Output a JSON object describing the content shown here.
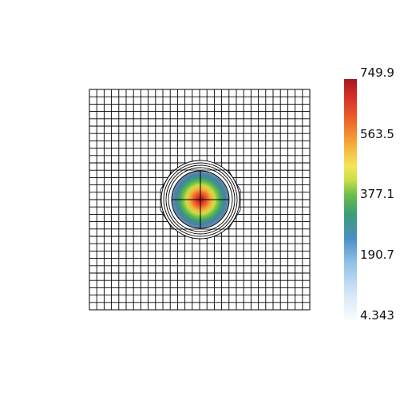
{
  "colorbar": {
    "tick_labels": [
      "749.9",
      "563.5",
      "377.1",
      "190.7",
      "4.343"
    ],
    "colors": [
      "#fbfdff",
      "#cfe4f7",
      "#8fc0e6",
      "#4a8fc5",
      "#3a9e74",
      "#6dbd4a",
      "#c9df45",
      "#f2e45a",
      "#f7b23c",
      "#ee6a27",
      "#d8322a",
      "#a6181d"
    ]
  },
  "chart_data": {
    "type": "heatmap",
    "title": "",
    "field_min": 4.343,
    "field_max": 749.9,
    "field_shape": "radial peak centered in the mesh",
    "mesh": "square structured grid with circular refinement ring around the center",
    "grid": true
  }
}
